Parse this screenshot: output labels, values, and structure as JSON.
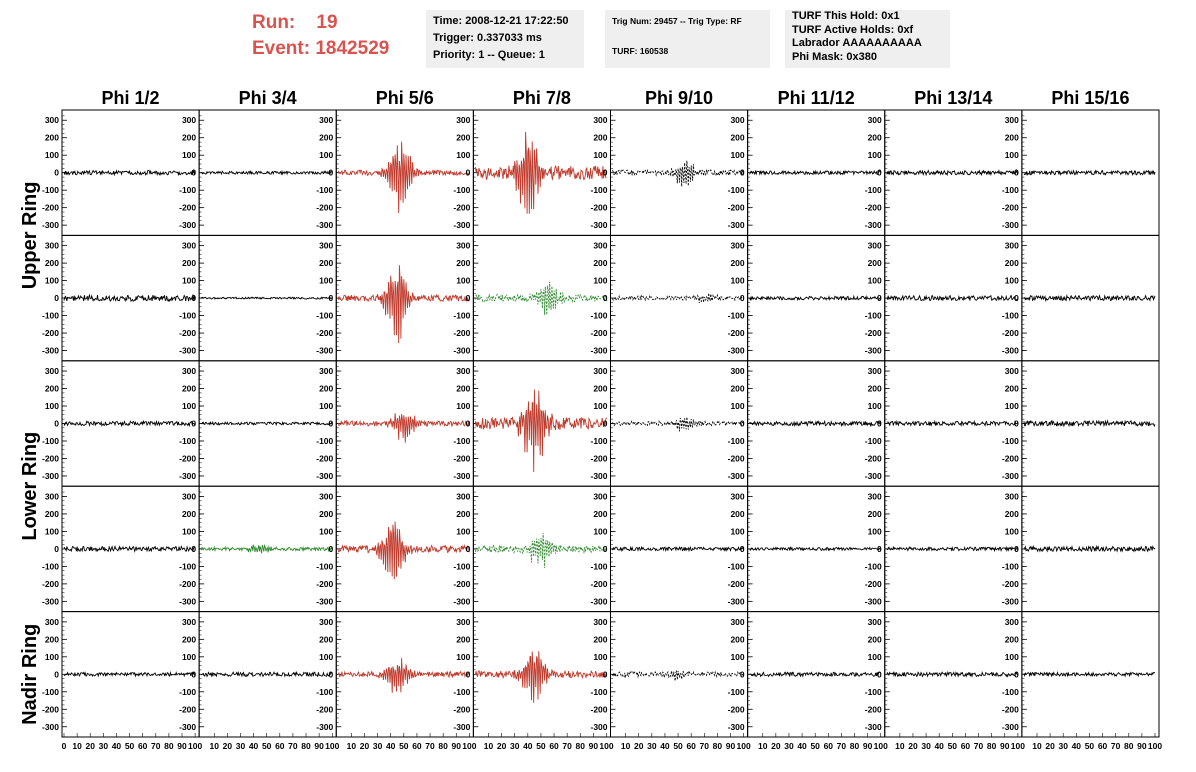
{
  "header": {
    "run_label": "Run:",
    "run_value": "19",
    "event_label": "Event:",
    "event_value": "1842529",
    "info1": [
      "Time: 2008-12-21 17:22:50",
      "Trigger: 0.337033 ms",
      "Priority: 1 -- Queue: 1"
    ],
    "info2": [
      "Trig Num: 29457 -- Trig Type: RF",
      "",
      "TURF: 160538"
    ],
    "info3": [
      "TURF This Hold: 0x1",
      "TURF Active Holds: 0xf",
      "Labrador AAAAAAAAAA",
      "Phi Mask: 0x380"
    ]
  },
  "colors": {
    "header_red": "#d9534f",
    "trace_black": "#000000",
    "trace_red": "#c0392b",
    "trace_green": "#2e8b2e"
  },
  "chart_data": {
    "type": "line",
    "columns": [
      "Phi 1/2",
      "Phi 3/4",
      "Phi 5/6",
      "Phi 7/8",
      "Phi 9/10",
      "Phi 11/12",
      "Phi 13/14",
      "Phi 15/16"
    ],
    "row_labels": [
      "Upper Ring",
      "Lower Ring",
      "Nadir Ring"
    ],
    "ylim": [
      -330,
      330
    ],
    "xlim": [
      0,
      100
    ],
    "y_ticks": [
      300,
      200,
      100,
      0,
      -100,
      -200,
      -300
    ],
    "y_tick_labels": [
      "300",
      "200",
      "100",
      "0",
      "-100",
      "-200",
      "-300"
    ],
    "x_tick_labels": [
      "0",
      "10",
      "20",
      "30",
      "40",
      "50",
      "60",
      "70",
      "80",
      "90",
      "100"
    ],
    "panels": [
      [
        {
          "style": "black-solid",
          "amp": 12,
          "burst": 0,
          "center": 50
        },
        {
          "style": "black-solid",
          "amp": 8,
          "burst": 0,
          "center": 50
        },
        {
          "style": "red-solid",
          "amp": 15,
          "burst": 230,
          "center": 47
        },
        {
          "style": "red-solid",
          "amp": 40,
          "burst": 280,
          "center": 40
        },
        {
          "style": "black-dashed",
          "amp": 15,
          "burst": 90,
          "center": 55
        },
        {
          "style": "black-solid",
          "amp": 10,
          "burst": 0,
          "center": 50
        },
        {
          "style": "black-solid",
          "amp": 12,
          "burst": 0,
          "center": 50
        },
        {
          "style": "black-solid",
          "amp": 12,
          "burst": 0,
          "center": 50
        }
      ],
      [
        {
          "style": "black-solid",
          "amp": 18,
          "burst": 0,
          "center": 50
        },
        {
          "style": "black-solid",
          "amp": 5,
          "burst": 0,
          "center": 50
        },
        {
          "style": "red-solid",
          "amp": 18,
          "burst": 260,
          "center": 45
        },
        {
          "style": "green-dashed",
          "amp": 20,
          "burst": 120,
          "center": 55
        },
        {
          "style": "black-dashed",
          "amp": 12,
          "burst": 30,
          "center": 70
        },
        {
          "style": "black-solid",
          "amp": 10,
          "burst": 0,
          "center": 50
        },
        {
          "style": "black-solid",
          "amp": 14,
          "burst": 0,
          "center": 50
        },
        {
          "style": "black-solid",
          "amp": 14,
          "burst": 0,
          "center": 50
        }
      ],
      [
        {
          "style": "black-solid",
          "amp": 12,
          "burst": 0,
          "center": 50
        },
        {
          "style": "black-solid",
          "amp": 8,
          "burst": 0,
          "center": 50
        },
        {
          "style": "red-solid",
          "amp": 15,
          "burst": 110,
          "center": 50
        },
        {
          "style": "red-solid",
          "amp": 35,
          "burst": 280,
          "center": 45
        },
        {
          "style": "black-dashed",
          "amp": 12,
          "burst": 45,
          "center": 55
        },
        {
          "style": "black-solid",
          "amp": 12,
          "burst": 0,
          "center": 50
        },
        {
          "style": "black-solid",
          "amp": 12,
          "burst": 0,
          "center": 50
        },
        {
          "style": "black-solid",
          "amp": 15,
          "burst": 0,
          "center": 50
        }
      ],
      [
        {
          "style": "black-solid",
          "amp": 14,
          "burst": 0,
          "center": 50
        },
        {
          "style": "green-solid",
          "amp": 10,
          "burst": 30,
          "center": 45
        },
        {
          "style": "red-solid",
          "amp": 20,
          "burst": 230,
          "center": 42
        },
        {
          "style": "green-dashed",
          "amp": 20,
          "burst": 120,
          "center": 50
        },
        {
          "style": "black-solid",
          "amp": 10,
          "burst": 0,
          "center": 50
        },
        {
          "style": "black-solid",
          "amp": 8,
          "burst": 0,
          "center": 50
        },
        {
          "style": "black-solid",
          "amp": 10,
          "burst": 0,
          "center": 50
        },
        {
          "style": "black-solid",
          "amp": 14,
          "burst": 0,
          "center": 50
        }
      ],
      [
        {
          "style": "black-solid",
          "amp": 10,
          "burst": 0,
          "center": 50
        },
        {
          "style": "black-solid",
          "amp": 12,
          "burst": 0,
          "center": 50
        },
        {
          "style": "red-solid",
          "amp": 15,
          "burst": 120,
          "center": 45
        },
        {
          "style": "red-solid",
          "amp": 20,
          "burst": 180,
          "center": 45
        },
        {
          "style": "black-dashed",
          "amp": 14,
          "burst": 30,
          "center": 50
        },
        {
          "style": "black-solid",
          "amp": 12,
          "burst": 0,
          "center": 50
        },
        {
          "style": "black-solid",
          "amp": 12,
          "burst": 0,
          "center": 50
        },
        {
          "style": "black-solid",
          "amp": 10,
          "burst": 0,
          "center": 50
        }
      ]
    ]
  }
}
